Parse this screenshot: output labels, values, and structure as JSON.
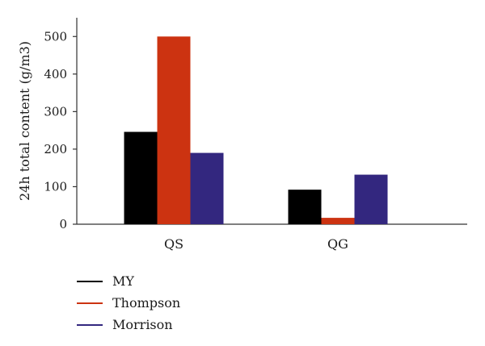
{
  "chart_data": {
    "type": "bar",
    "title": "",
    "xlabel": "",
    "ylabel": "24h total content (g/m3)",
    "categories": [
      "QS",
      "QG"
    ],
    "series": [
      {
        "name": "MY",
        "values": [
          246,
          92
        ],
        "color": "#000000"
      },
      {
        "name": "Thompson",
        "values": [
          500,
          17
        ],
        "color": "#cc3311"
      },
      {
        "name": "Morrison",
        "values": [
          190,
          132
        ],
        "color": "#33277f"
      }
    ],
    "ylim": [
      0,
      550
    ],
    "yticks": [
      0,
      100,
      200,
      300,
      400,
      500
    ],
    "grid": false,
    "legend_position": "bottom-left"
  }
}
